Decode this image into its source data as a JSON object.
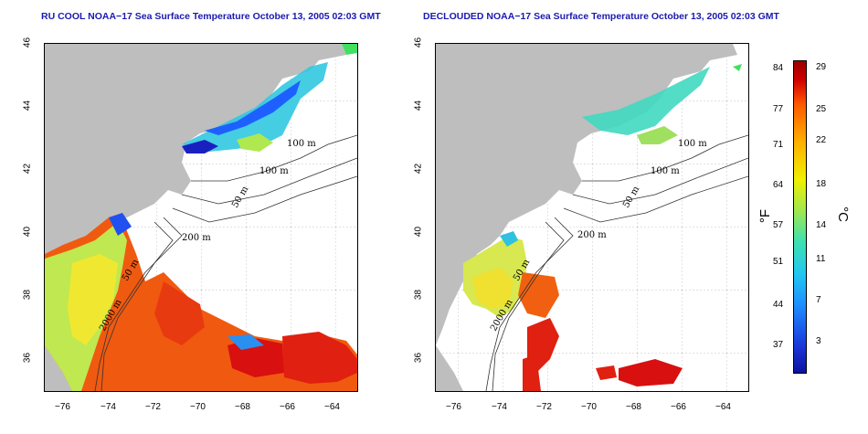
{
  "left_title": "RU COOL NOAA−17 Sea Surface Temperature October 13, 2005 02:03 GMT",
  "right_title": "DECLOUDED NOAA−17 Sea Surface Temperature October 13, 2005 02:03 GMT",
  "lat_ticks": [
    "46",
    "44",
    "42",
    "40",
    "38",
    "36"
  ],
  "lon_ticks": [
    "−76",
    "−74",
    "−72",
    "−70",
    "−68",
    "−66",
    "−64"
  ],
  "contour_labels": {
    "c100a": "100 m",
    "c100b": "100 m",
    "c50a": "50 m",
    "c200": "200 m",
    "c50b": "50 m",
    "c2000": "2000 m"
  },
  "colorbar": {
    "fahrenheit_label": "°F",
    "celsius_label": "°C",
    "fahrenheit_ticks": [
      "84",
      "77",
      "71",
      "64",
      "57",
      "51",
      "44",
      "37"
    ],
    "celsius_ticks": [
      "29",
      "25",
      "22",
      "18",
      "14",
      "11",
      "7",
      "3"
    ],
    "scale_colors": [
      "#1010a0",
      "#1e90ff",
      "#3ee0b0",
      "#f0f000",
      "#ff5a00",
      "#9a0000"
    ]
  },
  "colors": {
    "land": "#bebebe",
    "title": "#1a1ab0"
  }
}
